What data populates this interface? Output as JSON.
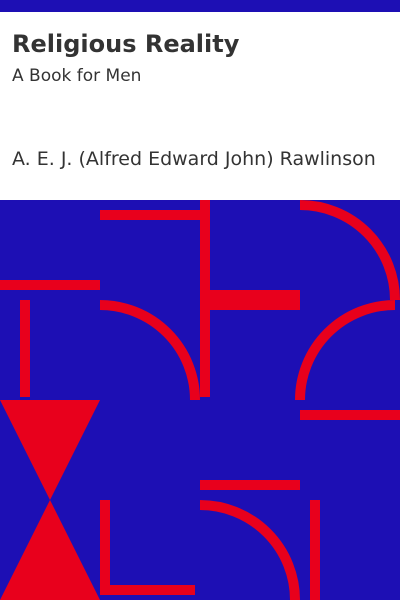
{
  "cover": {
    "title": "Religious Reality",
    "subtitle": "A Book for Men",
    "author": "A. E. J. (Alfred Edward John) Rawlinson"
  },
  "colors": {
    "background": "#1d0fb4",
    "pattern": "#e8001c",
    "text": "#333333",
    "panel": "#ffffff"
  }
}
